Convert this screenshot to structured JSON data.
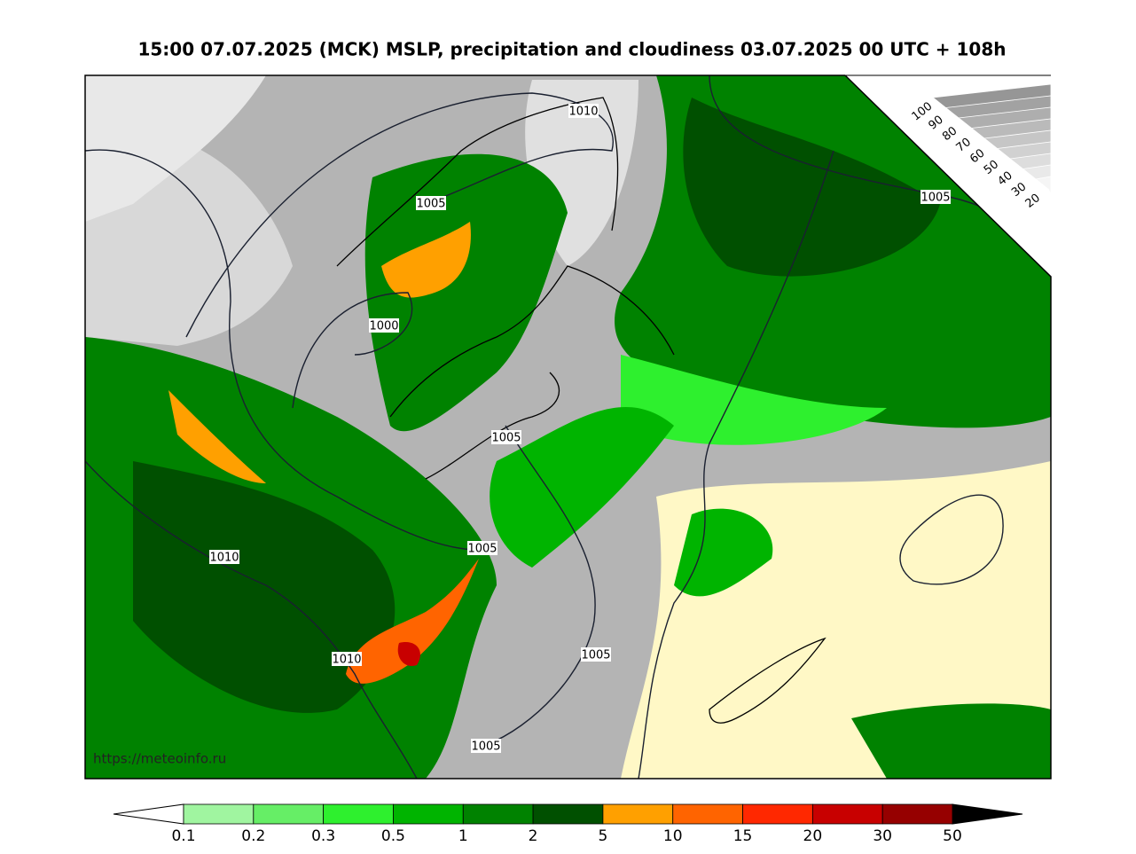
{
  "header": {
    "title": "15:00 07.07.2025 (MCK) MSLP, precipitation and cloudiness 03.07.2025 00 UTC + 108h"
  },
  "map": {
    "isobar_labels": [
      1010,
      1005,
      1000,
      1005,
      1005,
      1010,
      1005,
      1010,
      1005,
      1005
    ],
    "watermark": "https://meteoinfo.ru"
  },
  "cloudiness_scale": {
    "ticks": [
      100,
      90,
      80,
      70,
      60,
      50,
      40,
      30,
      20
    ]
  },
  "precipitation_scale": {
    "ticks": [
      0.1,
      0.2,
      0.3,
      0.5,
      1,
      2,
      5,
      10,
      15,
      20,
      30,
      50
    ],
    "colors": [
      "#a0f5a0",
      "#66ee66",
      "#2ef02e",
      "#00b400",
      "#008200",
      "#005000",
      "#ffa000",
      "#ff6400",
      "#ff2800",
      "#c80000",
      "#960000"
    ]
  }
}
